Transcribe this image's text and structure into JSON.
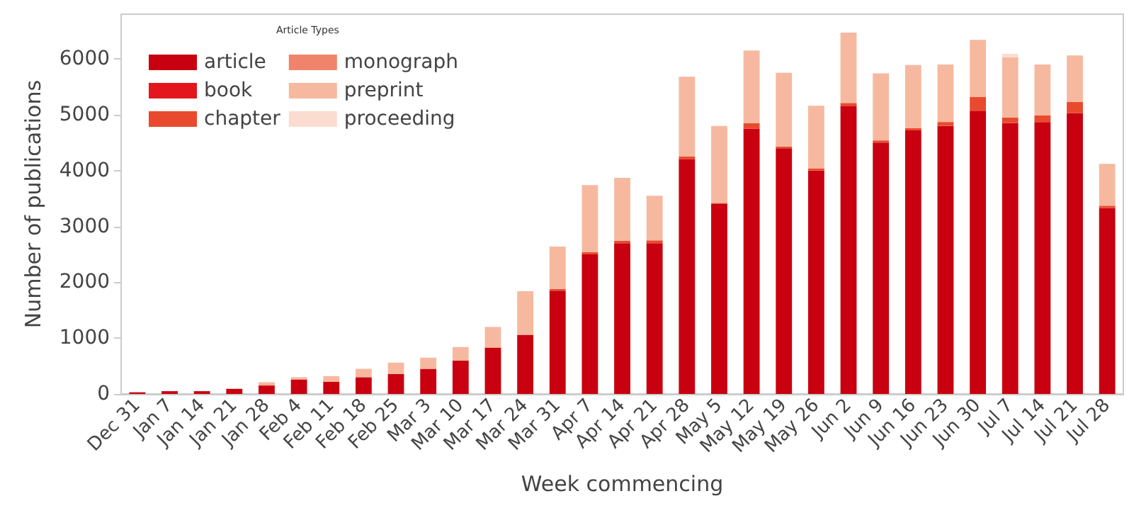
{
  "chart_data": {
    "type": "bar",
    "stacked": true,
    "xlabel": "Week commencing",
    "ylabel": "Number of publications",
    "legend_title": "Article Types",
    "legend": "top left",
    "grid": false,
    "categories": [
      "Dec 31",
      "Jan 7",
      "Jan 14",
      "Jan 21",
      "Jan 28",
      "Feb 4",
      "Feb 11",
      "Feb 18",
      "Feb 25",
      "Mar 3",
      "Mar 10",
      "Mar 17",
      "Mar 24",
      "Mar 31",
      "Apr 7",
      "Apr 14",
      "Apr 21",
      "Apr 28",
      "May 5",
      "May 12",
      "May 19",
      "May 26",
      "Jun 2",
      "Jun 9",
      "Jun 16",
      "Jun 23",
      "Jun 30",
      "Jul 7",
      "Jul 14",
      "Jul 21",
      "Jul 28"
    ],
    "ylim": [
      0,
      6800
    ],
    "yticks": [
      0,
      1000,
      2000,
      3000,
      4000,
      5000,
      6000
    ],
    "series": [
      {
        "name": "article",
        "color": "#c8000f",
        "values": [
          30,
          50,
          50,
          90,
          150,
          260,
          220,
          300,
          360,
          450,
          600,
          830,
          1060,
          1850,
          2500,
          2700,
          2700,
          4200,
          3400,
          4750,
          4400,
          4000,
          5150,
          4500,
          4720,
          4800,
          5070,
          4850,
          4870,
          5030,
          3330
        ]
      },
      {
        "name": "book",
        "color": "#e3161e",
        "values": [
          0,
          0,
          0,
          0,
          0,
          0,
          0,
          0,
          0,
          0,
          0,
          0,
          0,
          0,
          0,
          0,
          0,
          0,
          0,
          0,
          0,
          0,
          0,
          0,
          0,
          0,
          0,
          0,
          0,
          0,
          0
        ]
      },
      {
        "name": "chapter",
        "color": "#e94a2e",
        "values": [
          0,
          0,
          0,
          0,
          10,
          0,
          0,
          0,
          0,
          0,
          0,
          0,
          0,
          30,
          40,
          40,
          50,
          50,
          20,
          100,
          30,
          40,
          60,
          40,
          40,
          70,
          250,
          100,
          120,
          200,
          40
        ]
      },
      {
        "name": "monograph",
        "color": "#f0846a",
        "values": [
          0,
          0,
          0,
          0,
          0,
          0,
          0,
          0,
          0,
          0,
          0,
          0,
          0,
          0,
          0,
          0,
          0,
          0,
          0,
          0,
          0,
          0,
          0,
          0,
          0,
          0,
          0,
          0,
          0,
          0,
          0
        ]
      },
      {
        "name": "preprint",
        "color": "#f6b9a0",
        "values": [
          0,
          0,
          0,
          10,
          50,
          40,
          100,
          150,
          200,
          200,
          240,
          370,
          780,
          760,
          1200,
          1130,
          800,
          1430,
          1380,
          1300,
          1320,
          1120,
          1260,
          1200,
          1130,
          1030,
          1020,
          1080,
          910,
          830,
          750
        ]
      },
      {
        "name": "proceeding",
        "color": "#fbdcd0",
        "values": [
          0,
          0,
          0,
          0,
          0,
          0,
          0,
          0,
          0,
          0,
          0,
          0,
          0,
          0,
          0,
          0,
          0,
          0,
          0,
          0,
          0,
          0,
          0,
          0,
          0,
          0,
          0,
          60,
          0,
          0,
          0
        ]
      }
    ]
  }
}
